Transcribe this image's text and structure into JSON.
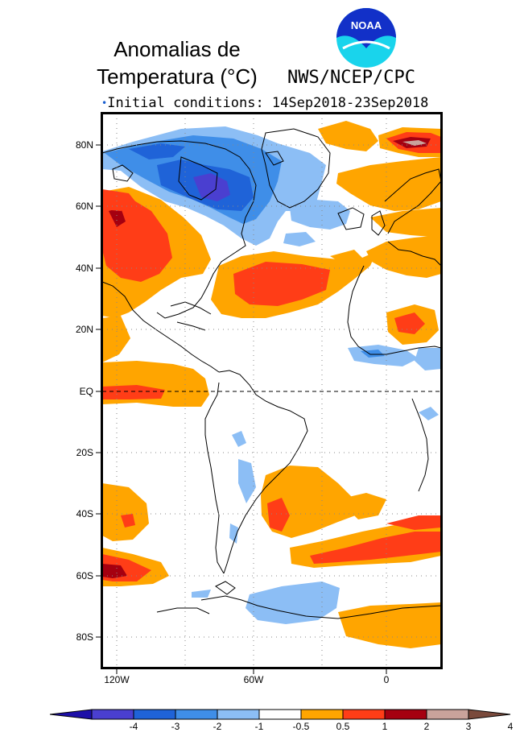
{
  "title_line1": "Anomalias de",
  "title_line2": "Temperatura (°C)",
  "agency": "NWS/NCEP/CPC",
  "logo_text": "NOAA",
  "initial_conditions": "Initial conditions: 14Sep2018-23Sep2018",
  "lat_labels": [
    "80N",
    "60N",
    "40N",
    "20N",
    "EQ",
    "20S",
    "40S",
    "60S",
    "80S"
  ],
  "lon_labels": [
    "120W",
    "60W",
    "0"
  ],
  "colorbar": {
    "tick_labels": [
      "-4",
      "-3",
      "-2",
      "-1",
      "-0.5",
      "0.5",
      "1",
      "2",
      "3",
      "4"
    ],
    "colors": [
      "#1d0fa8",
      "#4a3fd0",
      "#1f63d8",
      "#3f8ee8",
      "#8cbef5",
      "#ffffff",
      "#ffa500",
      "#ff3d17",
      "#a50010",
      "#c9a39b",
      "#7a4a3c"
    ]
  }
}
